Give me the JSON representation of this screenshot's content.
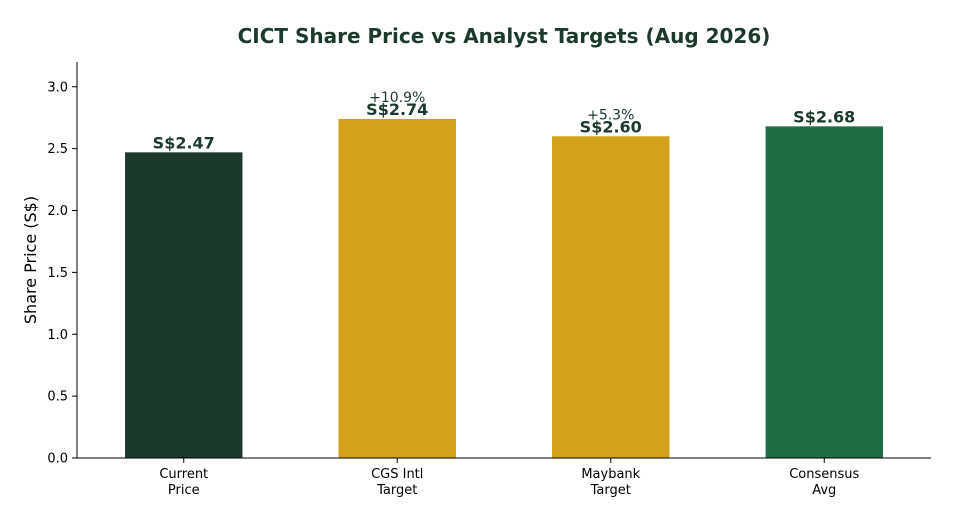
{
  "chart_data": {
    "type": "bar",
    "title": "CICT Share Price vs Analyst Targets (Aug 2026)",
    "xlabel": "",
    "ylabel": "Share Price (S$)",
    "ylim": [
      0,
      3.2
    ],
    "yticks": [
      "0.0",
      "0.5",
      "1.0",
      "1.5",
      "2.0",
      "2.5",
      "3.0"
    ],
    "grid": false,
    "categories": [
      [
        "Current",
        "Price"
      ],
      [
        "CGS Intl",
        "Target"
      ],
      [
        "Maybank",
        "Target"
      ],
      [
        "Consensus",
        "Avg"
      ]
    ],
    "values": [
      2.47,
      2.74,
      2.6,
      2.68
    ],
    "value_labels": [
      "S$2.47",
      "S$2.74",
      "S$2.60",
      "S$2.68"
    ],
    "upside_labels": [
      "",
      "+10.9%",
      "+5.3%",
      ""
    ],
    "colors": [
      "#1b3a2b",
      "#d4a11a",
      "#d4a11a",
      "#1f6e43"
    ]
  }
}
